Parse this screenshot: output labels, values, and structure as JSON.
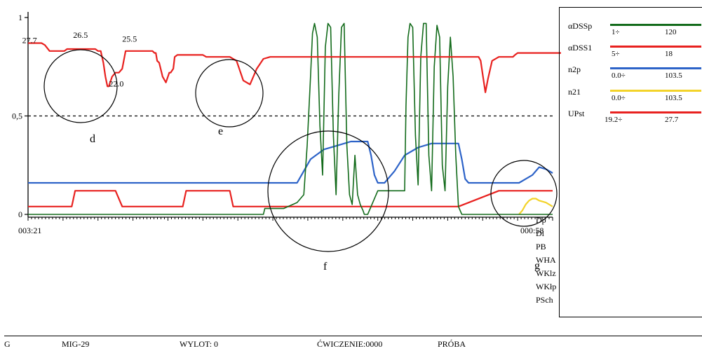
{
  "chart_data": {
    "type": "line",
    "y_ticks": [
      "1",
      "0,5",
      "0"
    ],
    "ylim": [
      0,
      1
    ],
    "time_start_label": "003:21",
    "time_end_label": "000:58",
    "reference_line": {
      "y": 0.5,
      "style": "dashed"
    },
    "point_labels": [
      "27.7",
      "26.5",
      "25.5",
      "22.0"
    ],
    "circle_labels": [
      "d",
      "e",
      "f",
      "g"
    ],
    "series": [
      {
        "name": "UPst",
        "color": "#e8211f",
        "x": [
          0,
          5,
          10,
          15,
          17,
          20,
          25,
          32,
          35,
          38,
          40,
          42,
          48,
          52,
          54,
          58,
          65,
          70,
          75,
          80,
          85,
          90,
          95,
          100,
          104,
          108,
          112,
          115,
          118,
          120,
          125,
          130,
          135,
          140,
          145,
          150,
          155,
          160,
          165,
          170,
          175,
          180,
          185,
          188,
          190,
          192,
          195,
          200,
          205,
          210,
          212,
          214,
          216,
          218,
          222,
          230,
          240,
          250,
          260,
          265,
          268,
          270,
          275,
          280,
          290,
          300,
          310,
          320,
          330,
          340,
          350,
          360,
          365,
          370,
          380,
          390,
          400,
          420,
          440,
          460,
          480,
          500,
          520,
          530,
          534,
          538,
          542,
          546,
          550,
          560,
          580,
          600,
          620,
          640,
          660,
          670,
          673,
          676,
          680,
          684,
          690,
          700,
          710,
          715,
          718,
          721,
          724,
          728,
          740,
          750,
          760,
          770,
          780,
          790,
          800
        ],
        "values": [
          0.87,
          0.87,
          0.87,
          0.87,
          0.87,
          0.87,
          0.86,
          0.83,
          0.83,
          0.83,
          0.83,
          0.83,
          0.83,
          0.83,
          0.83,
          0.84,
          0.84,
          0.84,
          0.84,
          0.84,
          0.84,
          0.84,
          0.84,
          0.84,
          0.83,
          0.83,
          0.77,
          0.7,
          0.65,
          0.65,
          0.7,
          0.72,
          0.72,
          0.74,
          0.83,
          0.83,
          0.83,
          0.83,
          0.83,
          0.83,
          0.83,
          0.83,
          0.83,
          0.82,
          0.82,
          0.78,
          0.77,
          0.7,
          0.67,
          0.72,
          0.72,
          0.73,
          0.74,
          0.8,
          0.81,
          0.81,
          0.81,
          0.81,
          0.81,
          0.8,
          0.8,
          0.8,
          0.8,
          0.8,
          0.8,
          0.8,
          0.78,
          0.68,
          0.66,
          0.74,
          0.79,
          0.8,
          0.8,
          0.8,
          0.8,
          0.8,
          0.8,
          0.8,
          0.8,
          0.8,
          0.8,
          0.8,
          0.8,
          0.8,
          0.8,
          0.8,
          0.8,
          0.8,
          0.8,
          0.8,
          0.8,
          0.8,
          0.8,
          0.8,
          0.8,
          0.8,
          0.78,
          0.71,
          0.62,
          0.69,
          0.78,
          0.8,
          0.8,
          0.8,
          0.8,
          0.8,
          0.81,
          0.82,
          0.82,
          0.82,
          0.82,
          0.82,
          0.82,
          0.82,
          0.82
        ]
      },
      {
        "name": "αDSS1",
        "color": "#e8211f",
        "x": [
          0,
          65,
          70,
          130,
          140,
          230,
          235,
          300,
          305,
          350,
          352,
          370,
          400,
          450,
          470,
          510,
          530,
          600,
          640,
          700,
          730,
          760,
          780
        ],
        "values": [
          0.04,
          0.04,
          0.12,
          0.12,
          0.04,
          0.04,
          0.12,
          0.12,
          0.04,
          0.04,
          0.04,
          0.04,
          0.04,
          0.04,
          0.04,
          0.04,
          0.04,
          0.04,
          0.04,
          0.12,
          0.12,
          0.12,
          0.12
        ]
      },
      {
        "name": "n2p",
        "color": "#2d63c8",
        "x": [
          0,
          100,
          200,
          300,
          380,
          390,
          400,
          410,
          420,
          440,
          460,
          480,
          500,
          505,
          510,
          515,
          520,
          530,
          545,
          560,
          580,
          600,
          620,
          640,
          645,
          650,
          655,
          700,
          720,
          730,
          740,
          750,
          760,
          770,
          780
        ],
        "values": [
          0.16,
          0.16,
          0.16,
          0.16,
          0.16,
          0.16,
          0.16,
          0.22,
          0.28,
          0.33,
          0.35,
          0.37,
          0.37,
          0.37,
          0.3,
          0.2,
          0.16,
          0.16,
          0.22,
          0.3,
          0.34,
          0.36,
          0.36,
          0.36,
          0.28,
          0.18,
          0.16,
          0.16,
          0.16,
          0.16,
          0.18,
          0.2,
          0.24,
          0.23,
          0.21
        ]
      },
      {
        "name": "n21",
        "color": "#f3d32a",
        "x": [
          730,
          735,
          740,
          745,
          750,
          755,
          760,
          770,
          780
        ],
        "values": [
          0.0,
          0.02,
          0.05,
          0.07,
          0.08,
          0.08,
          0.07,
          0.06,
          0.04
        ]
      },
      {
        "name": "αDSSp",
        "color": "#136b1b",
        "x": [
          0,
          100,
          200,
          300,
          330,
          350,
          352,
          380,
          400,
          410,
          415,
          420,
          423,
          426,
          430,
          434,
          438,
          442,
          446,
          450,
          454,
          458,
          462,
          466,
          470,
          474,
          478,
          482,
          486,
          490,
          494,
          498,
          500,
          505,
          510,
          520,
          540,
          560,
          562,
          565,
          568,
          572,
          576,
          580,
          584,
          588,
          592,
          596,
          600,
          604,
          608,
          612,
          616,
          620,
          624,
          628,
          632,
          636,
          640,
          645,
          650,
          700,
          780
        ],
        "values": [
          0.0,
          0.0,
          0.0,
          0.0,
          0.0,
          0.0,
          0.03,
          0.03,
          0.06,
          0.1,
          0.35,
          0.7,
          0.92,
          0.97,
          0.9,
          0.45,
          0.2,
          0.85,
          0.97,
          0.95,
          0.4,
          0.1,
          0.6,
          0.95,
          0.97,
          0.35,
          0.1,
          0.05,
          0.3,
          0.1,
          0.05,
          0.02,
          0.0,
          0.0,
          0.04,
          0.12,
          0.12,
          0.12,
          0.55,
          0.9,
          0.97,
          0.95,
          0.4,
          0.15,
          0.8,
          0.97,
          0.97,
          0.3,
          0.12,
          0.75,
          0.96,
          0.9,
          0.25,
          0.12,
          0.65,
          0.9,
          0.7,
          0.3,
          0.04,
          0.0,
          0.0,
          0.0,
          0.0
        ]
      }
    ]
  },
  "legend": {
    "entries": [
      {
        "name": "αDSSp",
        "min": "1÷",
        "max": "120",
        "color": "#136b1b"
      },
      {
        "name": "αDSS1",
        "min": "5÷",
        "max": "18",
        "color": "#e8211f"
      },
      {
        "name": "n2p",
        "min": "0.0÷",
        "max": "103.5",
        "color": "#2d63c8"
      },
      {
        "name": "n21",
        "min": "0.0÷",
        "max": "103.5",
        "color": "#f3d32a"
      },
      {
        "name": "UPst",
        "min": "19.2÷",
        "max": "27.7",
        "color": "#e8211f"
      }
    ],
    "indicators": [
      "Dp",
      "Dl",
      "PB",
      "WHA",
      "WKlz",
      "WKłp",
      "PSch"
    ]
  },
  "footer": {
    "letter": "G",
    "aircraft": "MIG-29",
    "flight": "WYLOT: 0",
    "exercise": "ĆWICZENIE:0000",
    "trial": "PRÓBA"
  }
}
